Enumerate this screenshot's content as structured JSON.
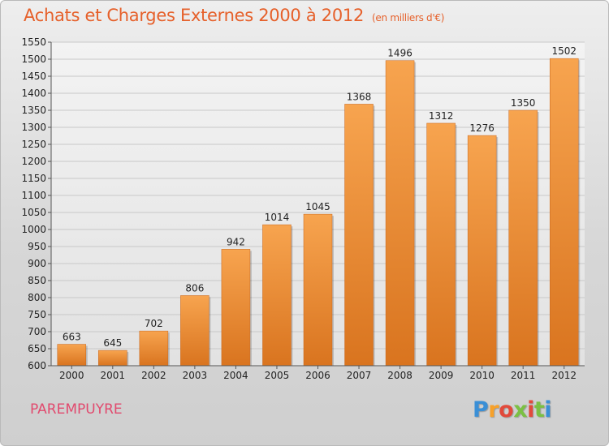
{
  "header": {
    "title": "Achats et Charges Externes 2000 à 2012",
    "unit": "(en milliers d'€)"
  },
  "location": "PAREMPUYRE",
  "brand": {
    "letters": [
      "P",
      "r",
      "o",
      "x",
      "i",
      "t",
      "i"
    ],
    "colors": [
      "#3a8fd6",
      "#f7a12a",
      "#e24a3b",
      "#7bc043",
      "#e24a3b",
      "#7bc043",
      "#3a8fd6"
    ]
  },
  "colors": {
    "bar_top": "#f7a44f",
    "bar_bottom": "#d9741f",
    "grid": "#c8c8c8"
  },
  "chart_data": {
    "type": "bar",
    "title": "Achats et Charges Externes 2000 à 2012",
    "categories": [
      "2000",
      "2001",
      "2002",
      "2003",
      "2004",
      "2005",
      "2006",
      "2007",
      "2008",
      "2009",
      "2010",
      "2011",
      "2012"
    ],
    "values": [
      663,
      645,
      702,
      806,
      942,
      1014,
      1045,
      1368,
      1496,
      1312,
      1276,
      1350,
      1502
    ],
    "ylim": [
      600,
      1550
    ],
    "ytick_step": 50,
    "grid": true
  }
}
